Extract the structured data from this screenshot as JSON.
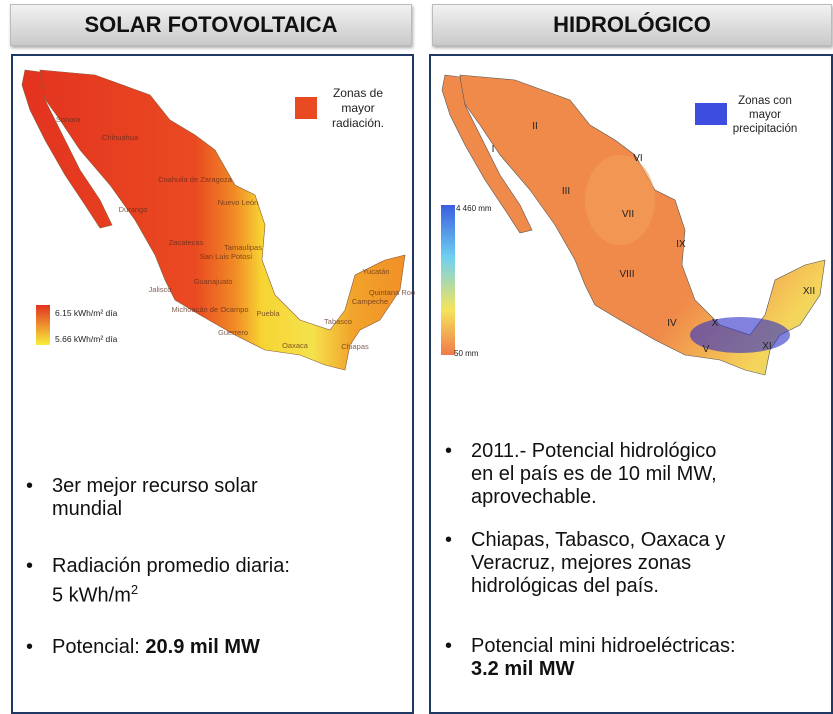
{
  "left": {
    "header": "SOLAR FOTOVOLTAICA",
    "legend": [
      "Zonas de",
      "mayor",
      "radiación."
    ],
    "scale": [
      "6.15 kWh/m² día",
      "5.66 kWh/m² día"
    ],
    "states": [
      "Sonora",
      "Chihuahua",
      "Coahuila de Zaragoza",
      "Durango",
      "Nuevo León",
      "Tamaulipas",
      "Zacatecas",
      "San Luis Potosí",
      "Jalisco",
      "Guanajuato",
      "Michoacán de Ocampo",
      "Puebla",
      "Guerrero",
      "Oaxaca",
      "Tabasco",
      "Chiapas",
      "Yucatán",
      "Campeche",
      "Quintana Roo"
    ],
    "bullets": [
      [
        "3er mejor recurso solar",
        "mundial"
      ],
      [
        "Radiación promedio diaria:",
        {
          "text": "5 kWh/m",
          "sup": "2"
        }
      ],
      [
        {
          "text": "Potencial: ",
          "bold": "20.9 mil MW"
        }
      ]
    ]
  },
  "right": {
    "header": "HIDROLÓGICO",
    "legend": [
      "Zonas con",
      "mayor",
      "precipitación"
    ],
    "scale": [
      "4 460 mm",
      "50 mm"
    ],
    "regions": [
      "I",
      "II",
      "III",
      "VI",
      "VII",
      "IX",
      "VIII",
      "IV",
      "X",
      "V",
      "XI",
      "XII"
    ],
    "bullets": [
      [
        "2011.- Potencial hidrológico",
        "en el país es de 10 mil MW,",
        "aprovechable."
      ],
      [
        "Chiapas, Tabasco, Oaxaca y",
        "Veracruz, mejores zonas",
        "hidrológicas del país."
      ],
      [
        "Potencial mini hidroeléctricas:",
        {
          "text": "",
          "bold": "3.2 mil MW"
        }
      ]
    ]
  }
}
